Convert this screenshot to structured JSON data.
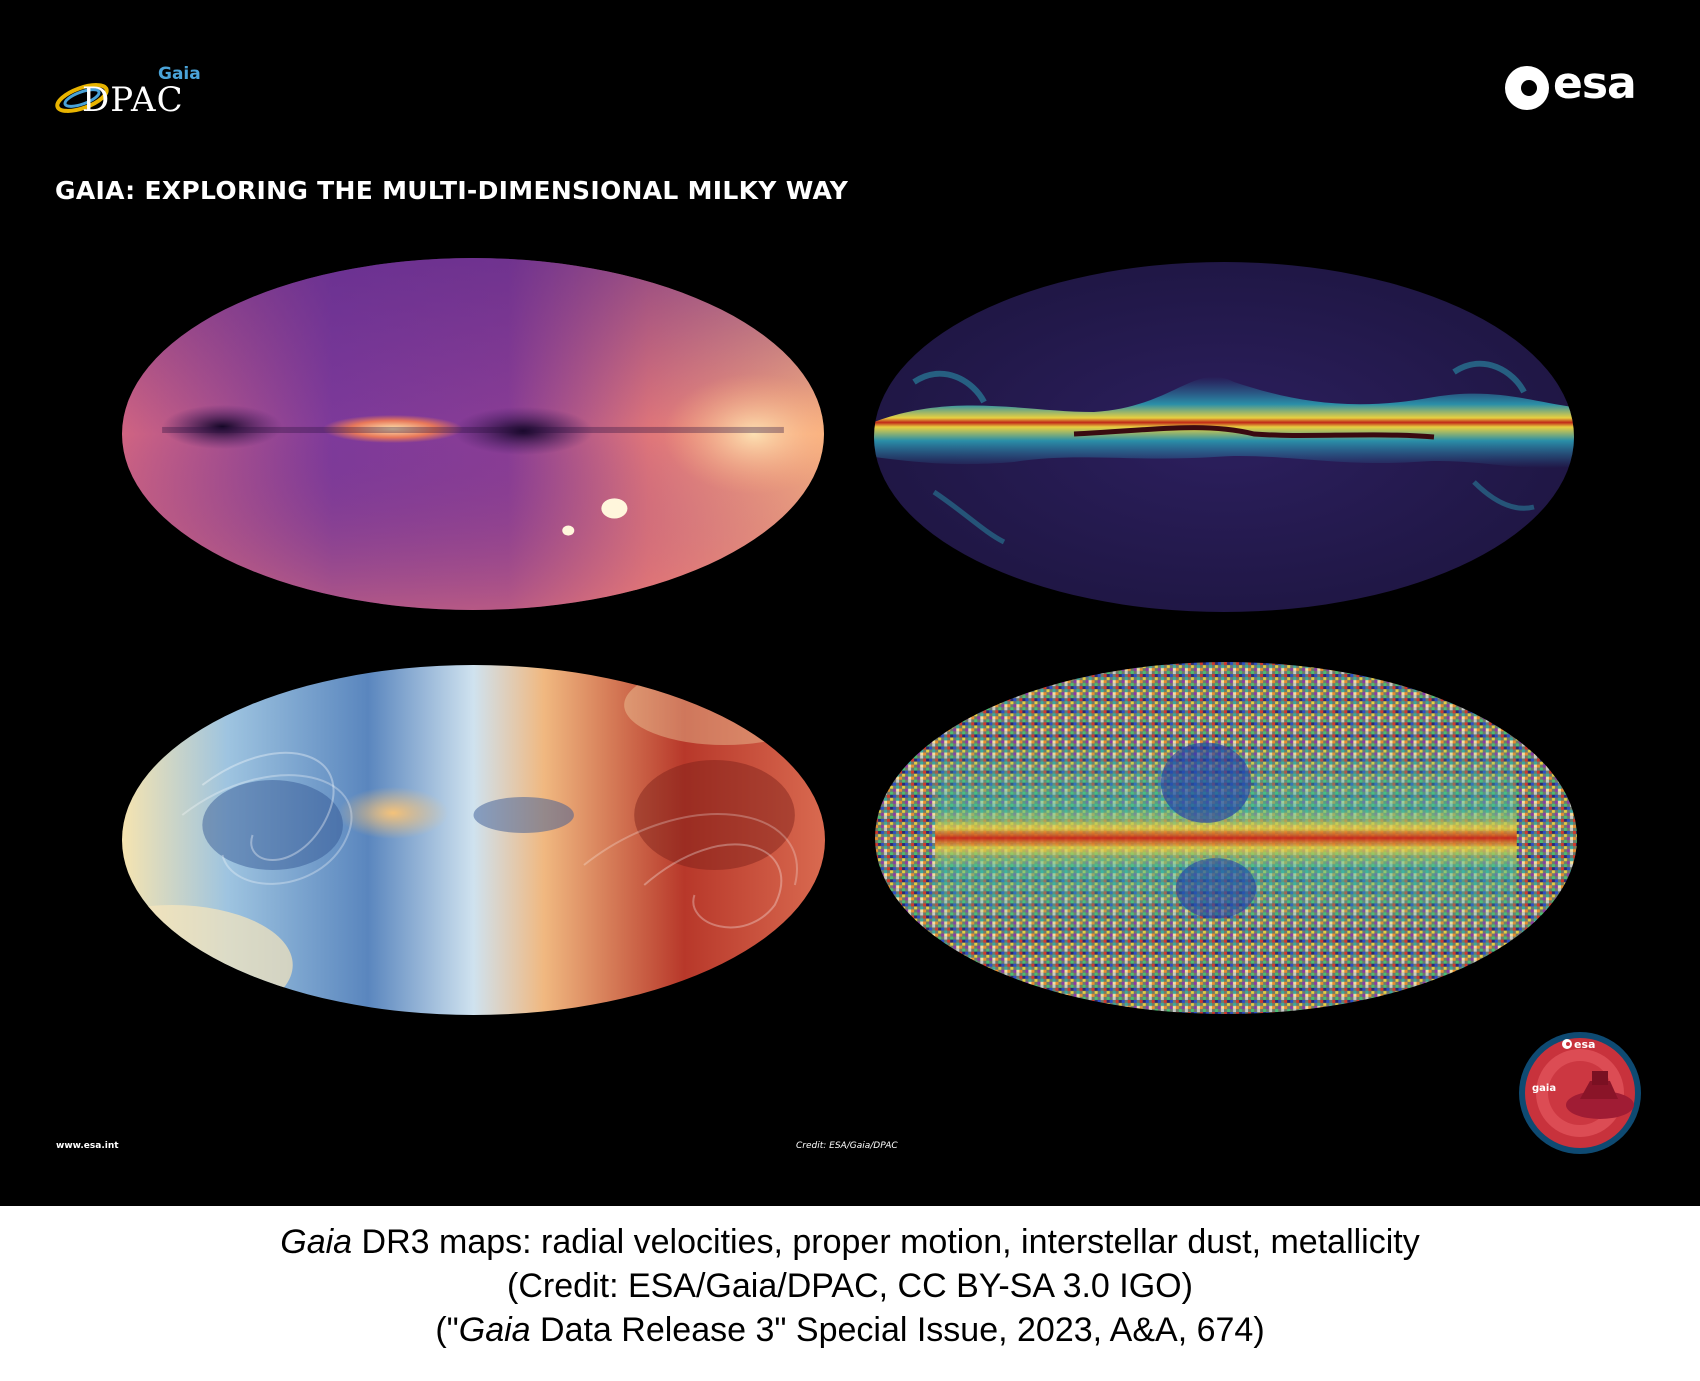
{
  "logos": {
    "dpac_small": "Gaia",
    "dpac_main": "DPAC",
    "esa": "esa",
    "badge_top": "esa",
    "badge_name": "gaia"
  },
  "poster": {
    "title": "GAIA: EXPLORING THE MULTI-DIMENSIONAL MILKY WAY",
    "url": "www.esa.int",
    "credit": "Credit: ESA/Gaia/DPAC"
  },
  "caption": {
    "line1_italic": "Gaia",
    "line1_rest": " DR3 maps: radial velocities, proper motion, interstellar dust, metallicity",
    "line2": "(Credit: ESA/Gaia/DPAC, CC BY-SA 3.0 IGO)",
    "line3_prefix": "(\"",
    "line3_italic": "Gaia",
    "line3_rest": " Data Release 3\" Special Issue, 2023, A&A, 674)"
  },
  "colors": {
    "background": "#000000",
    "dpac_blue": "#4aa3d8",
    "badge_red": "#c8323c"
  },
  "maps": [
    {
      "id": "radial-velocity-map",
      "palette": "magma"
    },
    {
      "id": "interstellar-dust-map",
      "palette": "dark-blue-to-yellow-red"
    },
    {
      "id": "proper-motion-map",
      "palette": "blue-white-red"
    },
    {
      "id": "metallicity-map",
      "palette": "rainbow-noise"
    }
  ]
}
